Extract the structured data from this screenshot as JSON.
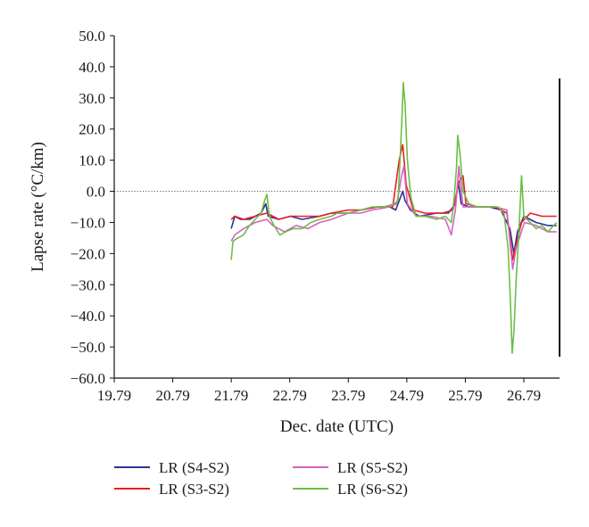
{
  "chart_data": {
    "type": "line",
    "xlabel": "Dec. date (UTC)",
    "ylabel": "Lapse rate (°C/km)",
    "xlim": [
      19.79,
      27.4
    ],
    "ylim": [
      -60,
      50
    ],
    "x_ticks": [
      19.79,
      20.79,
      21.79,
      22.79,
      23.79,
      24.79,
      25.79,
      26.79
    ],
    "x_tick_labels": [
      "19.79",
      "20.79",
      "21.79",
      "22.79",
      "23.79",
      "24.79",
      "25.79",
      "26.79"
    ],
    "y_ticks": [
      50,
      40,
      30,
      20,
      10,
      0,
      -10,
      -20,
      -30,
      -40,
      -50,
      -60
    ],
    "y_tick_labels": [
      "50.0",
      "40.0",
      "30.0",
      "20.0",
      "10.0",
      "0.0",
      "−10.0",
      "−20.0",
      "−30.0",
      "−40.0",
      "−50.0",
      "−60.0"
    ],
    "reference_line": {
      "y": 0,
      "style": "dotted"
    },
    "grid": false,
    "legend_position": "bottom",
    "series": [
      {
        "name": "LR (S4-S2)",
        "color": "#2e3192",
        "points": [
          [
            21.79,
            -12
          ],
          [
            21.85,
            -8
          ],
          [
            21.95,
            -9
          ],
          [
            22.1,
            -9
          ],
          [
            22.3,
            -7
          ],
          [
            22.38,
            -4
          ],
          [
            22.42,
            -8
          ],
          [
            22.6,
            -9
          ],
          [
            22.8,
            -8
          ],
          [
            23.0,
            -9
          ],
          [
            23.3,
            -8
          ],
          [
            23.5,
            -7
          ],
          [
            23.79,
            -7
          ],
          [
            24.0,
            -6
          ],
          [
            24.3,
            -5
          ],
          [
            24.5,
            -5
          ],
          [
            24.6,
            -6
          ],
          [
            24.72,
            0
          ],
          [
            24.76,
            -3
          ],
          [
            24.85,
            -6
          ],
          [
            25.0,
            -8
          ],
          [
            25.3,
            -7
          ],
          [
            25.5,
            -7
          ],
          [
            25.62,
            -4
          ],
          [
            25.67,
            3
          ],
          [
            25.72,
            -4
          ],
          [
            25.85,
            -5
          ],
          [
            26.2,
            -5
          ],
          [
            26.4,
            -6
          ],
          [
            26.55,
            -12
          ],
          [
            26.62,
            -20
          ],
          [
            26.68,
            -13
          ],
          [
            26.79,
            -8
          ],
          [
            27.0,
            -10
          ],
          [
            27.2,
            -11
          ],
          [
            27.35,
            -11
          ]
        ]
      },
      {
        "name": "LR (S3-S2)",
        "color": "#ed1c24",
        "points": [
          [
            21.79,
            -9
          ],
          [
            21.85,
            -8
          ],
          [
            22.0,
            -9
          ],
          [
            22.2,
            -8
          ],
          [
            22.4,
            -7
          ],
          [
            22.6,
            -9
          ],
          [
            22.8,
            -8
          ],
          [
            23.0,
            -8
          ],
          [
            23.3,
            -8
          ],
          [
            23.5,
            -7
          ],
          [
            23.79,
            -6
          ],
          [
            24.0,
            -6
          ],
          [
            24.3,
            -5
          ],
          [
            24.55,
            -5
          ],
          [
            24.66,
            10
          ],
          [
            24.72,
            15
          ],
          [
            24.78,
            2
          ],
          [
            24.9,
            -6
          ],
          [
            25.1,
            -7
          ],
          [
            25.4,
            -7
          ],
          [
            25.58,
            -6
          ],
          [
            25.68,
            3
          ],
          [
            25.75,
            5
          ],
          [
            25.8,
            -4
          ],
          [
            26.0,
            -5
          ],
          [
            26.3,
            -5
          ],
          [
            26.5,
            -7
          ],
          [
            26.6,
            -22
          ],
          [
            26.66,
            -17
          ],
          [
            26.75,
            -10
          ],
          [
            26.9,
            -7
          ],
          [
            27.1,
            -8
          ],
          [
            27.35,
            -8
          ]
        ]
      },
      {
        "name": "LR (S5-S2)",
        "color": "#d660c0",
        "points": [
          [
            21.79,
            -16
          ],
          [
            21.85,
            -14
          ],
          [
            22.0,
            -12
          ],
          [
            22.2,
            -10
          ],
          [
            22.4,
            -9
          ],
          [
            22.5,
            -11
          ],
          [
            22.7,
            -13
          ],
          [
            22.9,
            -11
          ],
          [
            23.1,
            -12
          ],
          [
            23.3,
            -10
          ],
          [
            23.5,
            -9
          ],
          [
            23.79,
            -7
          ],
          [
            24.0,
            -7
          ],
          [
            24.2,
            -6
          ],
          [
            24.5,
            -5
          ],
          [
            24.62,
            -4
          ],
          [
            24.7,
            5
          ],
          [
            24.74,
            8
          ],
          [
            24.8,
            -4
          ],
          [
            24.95,
            -8
          ],
          [
            25.2,
            -8
          ],
          [
            25.45,
            -9
          ],
          [
            25.55,
            -14
          ],
          [
            25.62,
            -6
          ],
          [
            25.68,
            8
          ],
          [
            25.75,
            -5
          ],
          [
            25.95,
            -5
          ],
          [
            26.3,
            -5
          ],
          [
            26.5,
            -6
          ],
          [
            26.6,
            -25
          ],
          [
            26.66,
            -18
          ],
          [
            26.8,
            -10
          ],
          [
            27.0,
            -11
          ],
          [
            27.2,
            -13
          ],
          [
            27.35,
            -13
          ]
        ]
      },
      {
        "name": "LR (S6-S2)",
        "color": "#6abf45",
        "points": [
          [
            21.79,
            -22
          ],
          [
            21.82,
            -16
          ],
          [
            21.9,
            -15
          ],
          [
            22.0,
            -14
          ],
          [
            22.1,
            -11
          ],
          [
            22.2,
            -9
          ],
          [
            22.3,
            -7
          ],
          [
            22.36,
            -3
          ],
          [
            22.4,
            -1
          ],
          [
            22.44,
            -8
          ],
          [
            22.52,
            -11
          ],
          [
            22.62,
            -14
          ],
          [
            22.72,
            -13
          ],
          [
            22.85,
            -12
          ],
          [
            23.0,
            -12
          ],
          [
            23.15,
            -10
          ],
          [
            23.3,
            -9
          ],
          [
            23.5,
            -8
          ],
          [
            23.6,
            -7
          ],
          [
            23.79,
            -7
          ],
          [
            24.0,
            -6
          ],
          [
            24.2,
            -5
          ],
          [
            24.4,
            -5
          ],
          [
            24.58,
            -4
          ],
          [
            24.64,
            -3
          ],
          [
            24.68,
            12
          ],
          [
            24.71,
            25
          ],
          [
            24.73,
            35
          ],
          [
            24.76,
            28
          ],
          [
            24.8,
            10
          ],
          [
            24.86,
            -2
          ],
          [
            24.95,
            -8
          ],
          [
            25.1,
            -8
          ],
          [
            25.3,
            -9
          ],
          [
            25.45,
            -8
          ],
          [
            25.55,
            -10
          ],
          [
            25.6,
            -2
          ],
          [
            25.64,
            8
          ],
          [
            25.66,
            18
          ],
          [
            25.7,
            12
          ],
          [
            25.75,
            0
          ],
          [
            25.85,
            -4
          ],
          [
            26.0,
            -5
          ],
          [
            26.2,
            -5
          ],
          [
            26.35,
            -5
          ],
          [
            26.45,
            -7
          ],
          [
            26.52,
            -18
          ],
          [
            26.56,
            -35
          ],
          [
            26.59,
            -52
          ],
          [
            26.62,
            -45
          ],
          [
            26.66,
            -28
          ],
          [
            26.7,
            -15
          ],
          [
            26.75,
            5
          ],
          [
            26.79,
            -8
          ],
          [
            26.9,
            -10
          ],
          [
            27.0,
            -12
          ],
          [
            27.1,
            -11
          ],
          [
            27.2,
            -13
          ],
          [
            27.3,
            -11
          ],
          [
            27.35,
            -10
          ]
        ]
      }
    ]
  }
}
